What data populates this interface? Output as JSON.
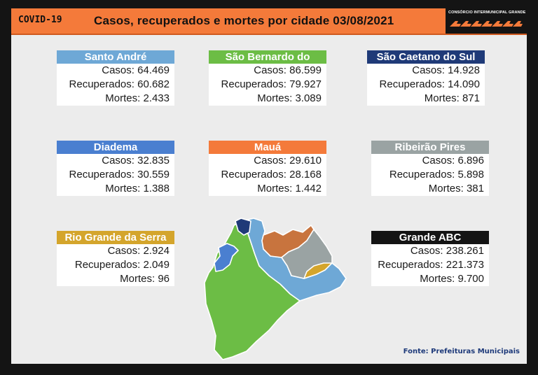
{
  "header": {
    "tag": "COVID-19",
    "title": "Casos, recuperados e mortes por cidade 03/08/2021",
    "logo_text": "CONSÓRCIO INTERMUNICIPAL GRANDE ABC",
    "logo_icon": "arrows-logo-icon"
  },
  "labels": {
    "cases": "Casos:",
    "recovered": "Recuperados:",
    "deaths": "Mortes:"
  },
  "cities": [
    {
      "name": "Santo André",
      "cases": "64.469",
      "recovered": "60.682",
      "deaths": "2.433",
      "color": "#6ea8d6"
    },
    {
      "name": "São Bernardo do Campo",
      "cases": "86.599",
      "recovered": "79.927",
      "deaths": "3.089",
      "color": "#6cbd45"
    },
    {
      "name": "São Caetano do Sul",
      "cases": "14.928",
      "recovered": "14.090",
      "deaths": "871",
      "color": "#1f3a78"
    },
    {
      "name": "Diadema",
      "cases": "32.835",
      "recovered": "30.559",
      "deaths": "1.388",
      "color": "#4a7fd0"
    },
    {
      "name": "Mauá",
      "cases": "29.610",
      "recovered": "28.168",
      "deaths": "1.442",
      "color": "#f47a3a"
    },
    {
      "name": "Ribeirão Pires",
      "cases": "6.896",
      "recovered": "5.898",
      "deaths": "381",
      "color": "#9aa3a3"
    },
    {
      "name": "Rio Grande da Serra",
      "cases": "2.924",
      "recovered": "2.049",
      "deaths": "96",
      "color": "#d4a52c"
    },
    {
      "name": "Grande ABC",
      "cases": "238.261",
      "recovered": "221.373",
      "deaths": "9.700",
      "color": "#141414"
    }
  ],
  "source": "Fonte: Prefeituras Municipais"
}
